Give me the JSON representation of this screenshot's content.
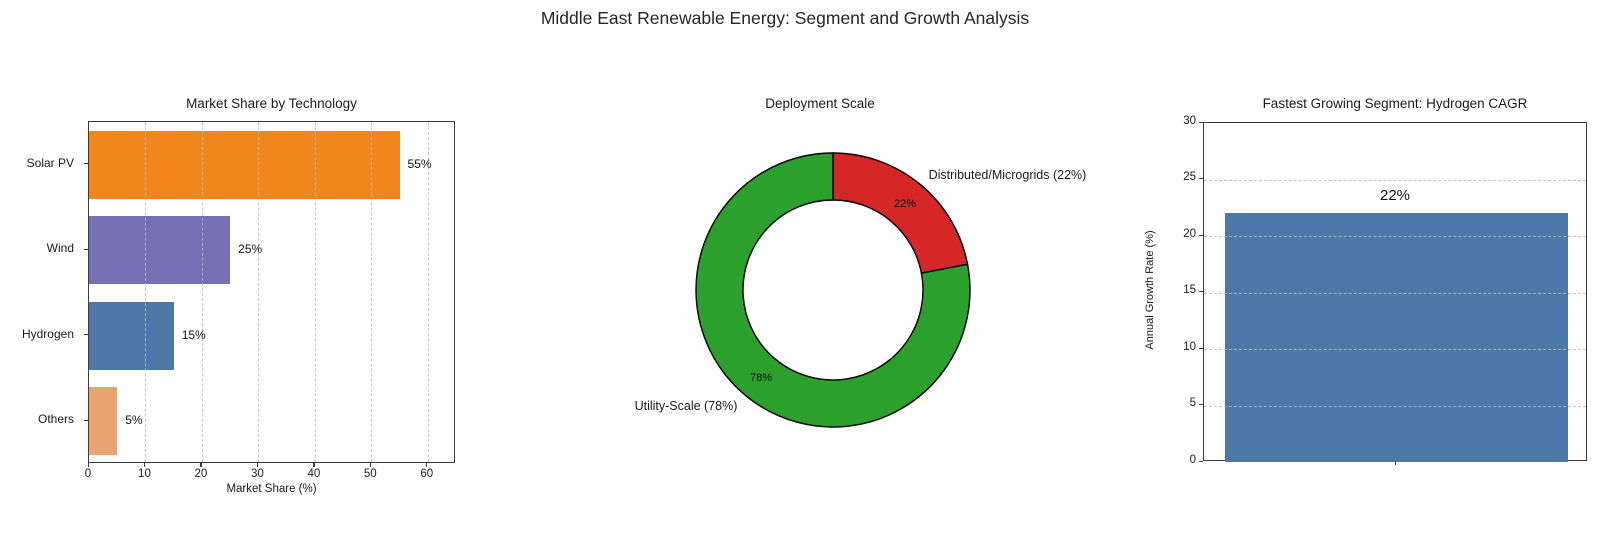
{
  "figure": {
    "title": "Middle East Renewable Energy: Segment and Growth Analysis",
    "background": "#ffffff"
  },
  "chart_data": [
    {
      "id": "market_share",
      "type": "bar",
      "orientation": "horizontal",
      "title": "Market Share by Technology",
      "xlabel": "Market Share (%)",
      "xlim": [
        0,
        65
      ],
      "xticks": [
        0,
        10,
        20,
        30,
        40,
        50,
        60
      ],
      "grid": "vertical-dashed",
      "categories": [
        "Solar PV",
        "Wind",
        "Hydrogen",
        "Others"
      ],
      "values": [
        55,
        25,
        15,
        5
      ],
      "bar_labels": [
        "55%",
        "25%",
        "15%",
        "5%"
      ],
      "bar_colors": [
        "#F0861C",
        "#7570B3",
        "#4C78A8",
        "#E8A470"
      ]
    },
    {
      "id": "deployment_scale",
      "type": "pie",
      "subtype": "donut",
      "title": "Deployment Scale",
      "start_angle": 90,
      "clockwise": true,
      "inner_radius_ratio": 0.66,
      "slices": [
        {
          "label": "Distributed/Microgrids (22%)",
          "value": 22,
          "pct_label": "22%",
          "color": "#D62728"
        },
        {
          "label": "Utility-Scale (78%)",
          "value": 78,
          "pct_label": "78%",
          "color": "#2CA02C"
        }
      ],
      "outline_color": "#000000"
    },
    {
      "id": "hydrogen_cagr",
      "type": "bar",
      "orientation": "vertical",
      "title": "Fastest Growing Segment: Hydrogen CAGR",
      "ylabel": "Annual Growth Rate (%)",
      "ylim": [
        0,
        30
      ],
      "yticks": [
        0,
        5,
        10,
        15,
        20,
        25,
        30
      ],
      "grid": "horizontal-dashed",
      "categories": [
        ""
      ],
      "values": [
        22
      ],
      "bar_labels": [
        "22%"
      ],
      "bar_colors": [
        "#4C78A8"
      ]
    }
  ]
}
